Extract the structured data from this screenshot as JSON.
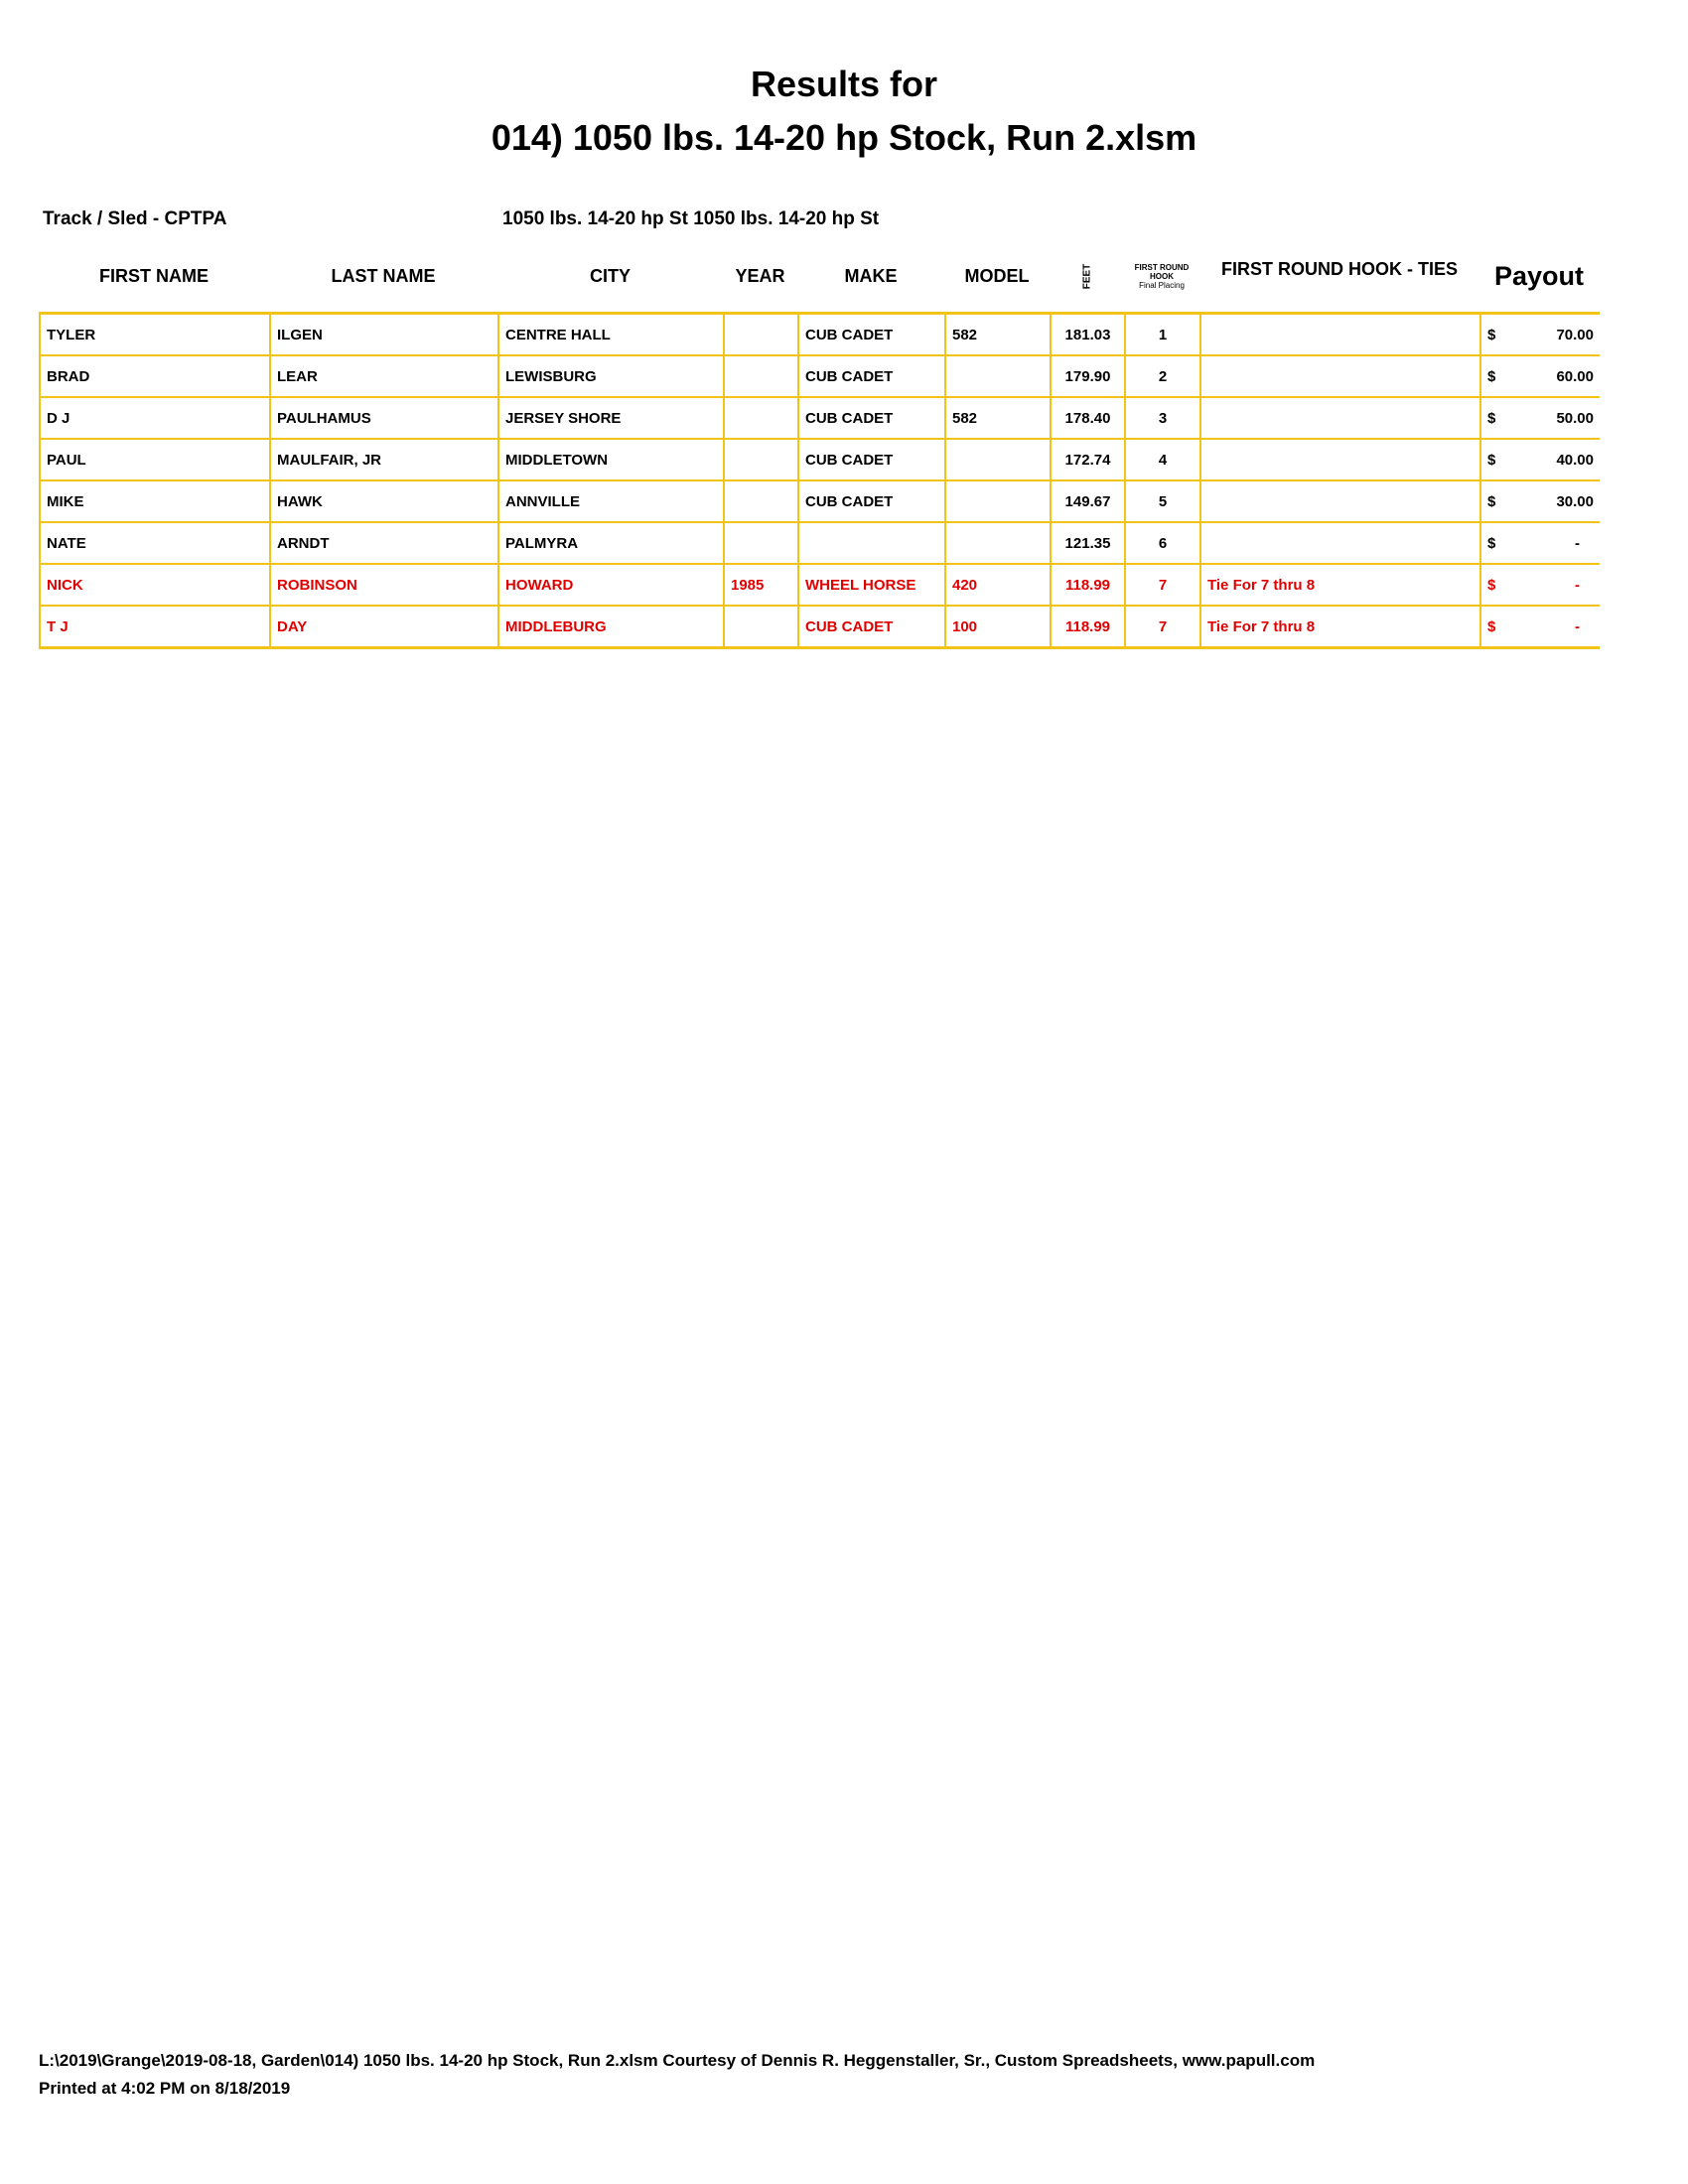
{
  "title_line1": "Results for",
  "title_line2": "014) 1050 lbs. 14-20 hp Stock, Run 2.xlsm",
  "track_label": "Track / Sled - CPTPA",
  "class_label": "1050 lbs. 14-20 hp St 1050 lbs. 14-20 hp St",
  "headers": {
    "first": "FIRST NAME",
    "last": "LAST NAME",
    "city": "CITY",
    "year": "YEAR",
    "make": "MAKE",
    "model": "MODEL",
    "feet": "FEET",
    "hook1": "FIRST ROUND HOOK",
    "hook2": "Final Placing",
    "ties": "FIRST ROUND HOOK - TIES",
    "payout": "Payout"
  },
  "rows": [
    {
      "first": "TYLER",
      "last": "ILGEN",
      "city": "CENTRE HALL",
      "year": "",
      "make": "CUB CADET",
      "model": "582",
      "feet": "181.03",
      "place": "1",
      "ties": "",
      "cur": "$",
      "amt": "70.00",
      "red": false
    },
    {
      "first": "BRAD",
      "last": "LEAR",
      "city": "LEWISBURG",
      "year": "",
      "make": "CUB CADET",
      "model": "",
      "feet": "179.90",
      "place": "2",
      "ties": "",
      "cur": "$",
      "amt": "60.00",
      "red": false
    },
    {
      "first": "D J",
      "last": "PAULHAMUS",
      "city": "JERSEY SHORE",
      "year": "",
      "make": "CUB CADET",
      "model": "582",
      "feet": "178.40",
      "place": "3",
      "ties": "",
      "cur": "$",
      "amt": "50.00",
      "red": false
    },
    {
      "first": "PAUL",
      "last": "MAULFAIR, JR",
      "city": "MIDDLETOWN",
      "year": "",
      "make": "CUB CADET",
      "model": "",
      "feet": "172.74",
      "place": "4",
      "ties": "",
      "cur": "$",
      "amt": "40.00",
      "red": false
    },
    {
      "first": "MIKE",
      "last": "HAWK",
      "city": "ANNVILLE",
      "year": "",
      "make": "CUB CADET",
      "model": "",
      "feet": "149.67",
      "place": "5",
      "ties": "",
      "cur": "$",
      "amt": "30.00",
      "red": false
    },
    {
      "first": "NATE",
      "last": "ARNDT",
      "city": "PALMYRA",
      "year": "",
      "make": "",
      "model": "",
      "feet": "121.35",
      "place": "6",
      "ties": "",
      "cur": "$",
      "amt": "-",
      "red": false
    },
    {
      "first": "NICK",
      "last": "ROBINSON",
      "city": "HOWARD",
      "year": "1985",
      "make": "WHEEL HORSE",
      "model": "420",
      "feet": "118.99",
      "place": "7",
      "ties": "Tie For 7 thru 8",
      "cur": "$",
      "amt": "-",
      "red": true
    },
    {
      "first": "T J",
      "last": "DAY",
      "city": "MIDDLEBURG",
      "year": "",
      "make": "CUB CADET",
      "model": "100",
      "feet": "118.99",
      "place": "7",
      "ties": "Tie For 7 thru 8",
      "cur": "$",
      "amt": "-",
      "red": true
    }
  ],
  "footer_line1": "L:\\2019\\Grange\\2019-08-18, Garden\\014) 1050 lbs. 14-20 hp Stock, Run 2.xlsm  Courtesy of Dennis R. Heggenstaller, Sr., Custom Spreadsheets, www.papull.com",
  "footer_line2": "Printed at 4:02 PM on 8/18/2019",
  "colors": {
    "border": "#f2c417",
    "tie_text": "#e00000"
  }
}
